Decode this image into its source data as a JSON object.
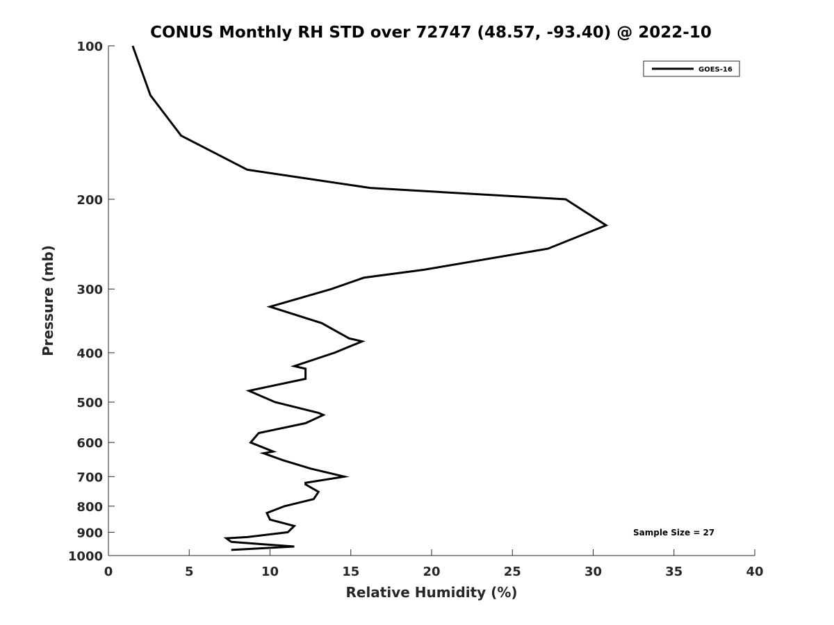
{
  "chart_data": {
    "type": "line",
    "title": "CONUS Monthly RH STD over 72747 (48.57, -93.40) @ 2022-10",
    "xlabel": "Relative Humidity (%)",
    "ylabel": "Pressure (mb)",
    "xlim": [
      0,
      40
    ],
    "ylim": [
      100,
      1000
    ],
    "yscale": "log",
    "y_reversed": true,
    "grid": false,
    "legend_position": "top-right",
    "x_ticks": [
      0,
      5,
      10,
      15,
      20,
      25,
      30,
      35,
      40
    ],
    "y_ticks": [
      100,
      200,
      300,
      400,
      500,
      600,
      700,
      800,
      900,
      1000
    ],
    "annotation": "Sample Size = 27",
    "series": [
      {
        "name": "GOES-16",
        "color": "#000000",
        "points": [
          [
            1.5,
            100
          ],
          [
            2.6,
            125
          ],
          [
            4.5,
            150
          ],
          [
            8.6,
            175
          ],
          [
            16.2,
            190
          ],
          [
            28.3,
            200
          ],
          [
            30.8,
            225
          ],
          [
            27.2,
            250
          ],
          [
            19.5,
            275
          ],
          [
            15.8,
            285
          ],
          [
            13.8,
            300
          ],
          [
            10.0,
            325
          ],
          [
            13.2,
            350
          ],
          [
            14.9,
            375
          ],
          [
            15.7,
            380
          ],
          [
            14.0,
            400
          ],
          [
            11.5,
            425
          ],
          [
            12.2,
            430
          ],
          [
            12.2,
            450
          ],
          [
            8.7,
            475
          ],
          [
            10.3,
            500
          ],
          [
            13.0,
            525
          ],
          [
            13.3,
            530
          ],
          [
            12.2,
            550
          ],
          [
            9.3,
            575
          ],
          [
            8.8,
            600
          ],
          [
            10.2,
            625
          ],
          [
            9.6,
            630
          ],
          [
            10.8,
            650
          ],
          [
            12.5,
            675
          ],
          [
            14.6,
            700
          ],
          [
            12.2,
            720
          ],
          [
            12.2,
            725
          ],
          [
            13.0,
            750
          ],
          [
            12.7,
            775
          ],
          [
            10.9,
            800
          ],
          [
            9.8,
            825
          ],
          [
            10.0,
            850
          ],
          [
            11.5,
            875
          ],
          [
            11.1,
            900
          ],
          [
            8.6,
            920
          ],
          [
            7.3,
            925
          ],
          [
            7.6,
            940
          ],
          [
            11.5,
            960
          ],
          [
            7.6,
            975
          ]
        ]
      }
    ]
  }
}
